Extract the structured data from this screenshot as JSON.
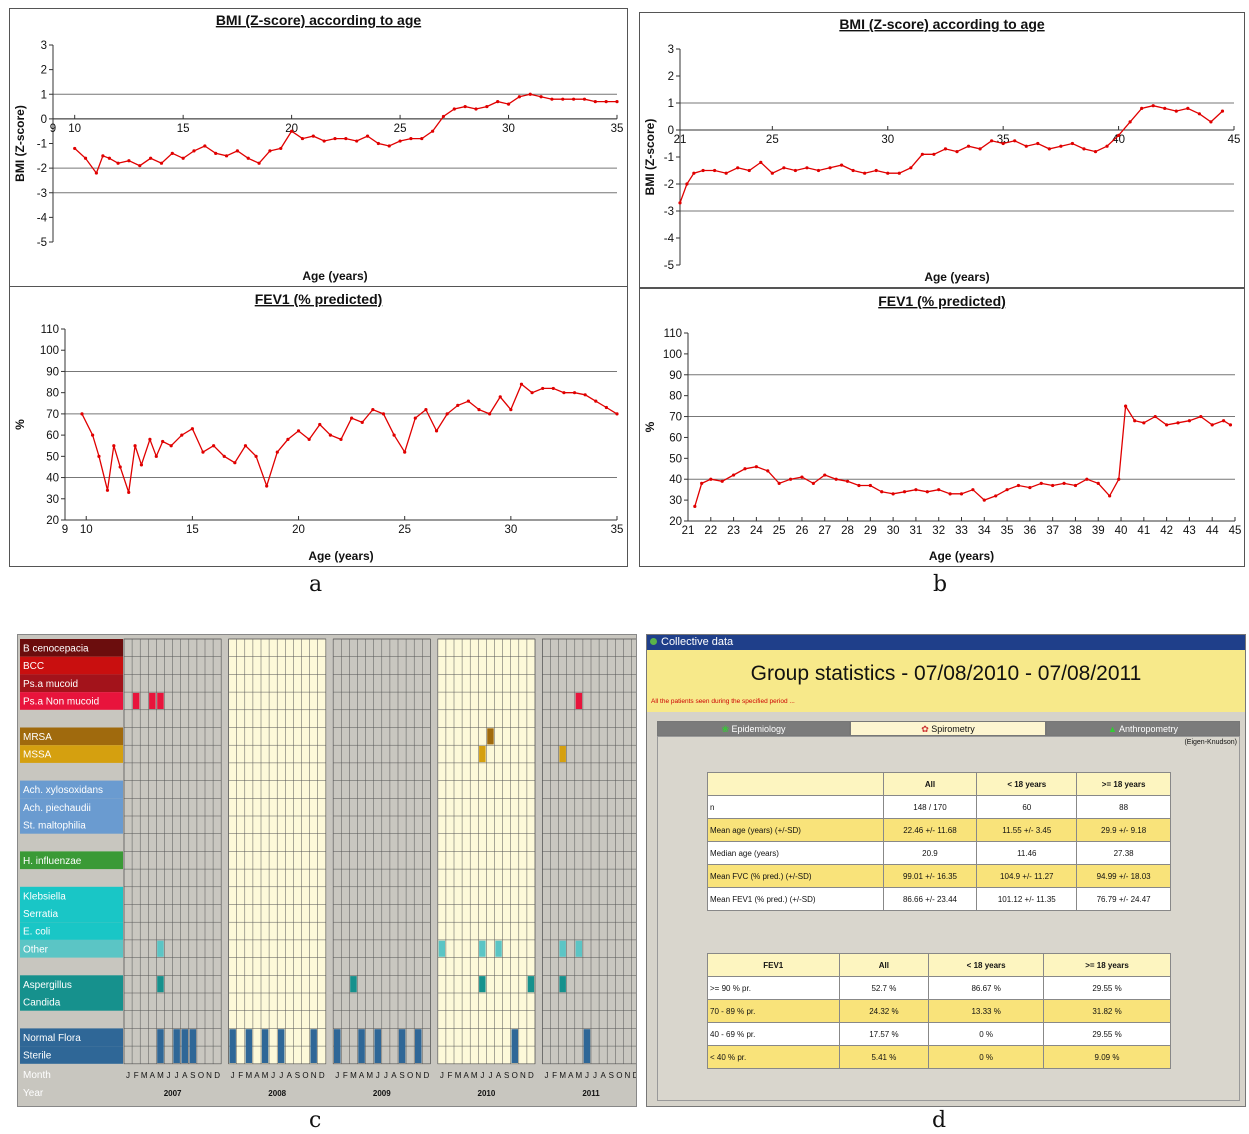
{
  "panel_labels": {
    "a": "a",
    "b": "b",
    "c": "c",
    "d": "d"
  },
  "chart_data": [
    {
      "type": "line",
      "panel": "a",
      "title": "BMI (Z-score) according to age",
      "xlabel": "Age (years)",
      "ylabel": "BMI (Z-score)",
      "xlim": [
        9,
        35
      ],
      "ylim": [
        -5,
        3
      ],
      "xticks": [
        9,
        10,
        15,
        20,
        25,
        30,
        35
      ],
      "yticks": [
        -5,
        -4,
        -3,
        -2,
        -1,
        0,
        1,
        2,
        3
      ],
      "hlines": [
        -3,
        -2,
        0,
        1
      ],
      "series": [
        {
          "color": "#e00000",
          "x": [
            10,
            10.5,
            11,
            11.3,
            11.6,
            12,
            12.5,
            13,
            13.5,
            14,
            14.5,
            15,
            15.5,
            16,
            16.5,
            17,
            17.5,
            18,
            18.5,
            19,
            19.5,
            20,
            20.5,
            21,
            21.5,
            22,
            22.5,
            23,
            23.5,
            24,
            24.5,
            25,
            25.5,
            26,
            26.5,
            27,
            27.5,
            28,
            28.5,
            29,
            29.5,
            30,
            30.5,
            31,
            31.5,
            32,
            32.5,
            33,
            33.5,
            34,
            34.5,
            35
          ],
          "y": [
            -1.2,
            -1.6,
            -2.2,
            -1.5,
            -1.6,
            -1.8,
            -1.7,
            -1.9,
            -1.6,
            -1.8,
            -1.4,
            -1.6,
            -1.3,
            -1.1,
            -1.4,
            -1.5,
            -1.3,
            -1.6,
            -1.8,
            -1.3,
            -1.2,
            -0.5,
            -0.8,
            -0.7,
            -0.9,
            -0.8,
            -0.8,
            -0.9,
            -0.7,
            -1.0,
            -1.1,
            -0.9,
            -0.8,
            -0.8,
            -0.5,
            0.1,
            0.4,
            0.5,
            0.4,
            0.5,
            0.7,
            0.6,
            0.9,
            1.0,
            0.9,
            0.8,
            0.8,
            0.8,
            0.8,
            0.7,
            0.7,
            0.7
          ]
        }
      ]
    },
    {
      "type": "line",
      "panel": "a",
      "title": "FEV1 (% predicted)",
      "xlabel": "Age (years)",
      "ylabel": "%",
      "xlim": [
        9,
        35
      ],
      "ylim": [
        20,
        110
      ],
      "xticks": [
        9,
        10,
        15,
        20,
        25,
        30,
        35
      ],
      "yticks": [
        20,
        30,
        40,
        50,
        60,
        70,
        80,
        90,
        100,
        110
      ],
      "hlines": [
        40,
        70,
        90
      ],
      "series": [
        {
          "color": "#e00000",
          "x": [
            9.8,
            10.3,
            10.6,
            11,
            11.3,
            11.6,
            12,
            12.3,
            12.6,
            13,
            13.3,
            13.6,
            14,
            14.5,
            15,
            15.5,
            16,
            16.5,
            17,
            17.5,
            18,
            18.5,
            19,
            19.5,
            20,
            20.5,
            21,
            21.5,
            22,
            22.5,
            23,
            23.5,
            24,
            24.5,
            25,
            25.5,
            26,
            26.5,
            27,
            27.5,
            28,
            28.5,
            29,
            29.5,
            30,
            30.5,
            31,
            31.5,
            32,
            32.5,
            33,
            33.5,
            34,
            34.5,
            35
          ],
          "y": [
            70,
            60,
            50,
            34,
            55,
            45,
            33,
            55,
            46,
            58,
            50,
            57,
            55,
            60,
            63,
            52,
            55,
            50,
            47,
            55,
            50,
            36,
            52,
            58,
            62,
            58,
            65,
            60,
            58,
            68,
            66,
            72,
            70,
            60,
            52,
            68,
            72,
            62,
            70,
            74,
            76,
            72,
            70,
            78,
            72,
            84,
            80,
            82,
            82,
            80,
            80,
            79,
            76,
            73,
            70
          ]
        }
      ]
    },
    {
      "type": "line",
      "panel": "b",
      "title": "BMI (Z-score) according to age",
      "xlabel": "Age (years)",
      "ylabel": "BMI (Z-score)",
      "xlim": [
        21,
        45
      ],
      "ylim": [
        -5,
        3
      ],
      "xticks": [
        21,
        25,
        30,
        35,
        40,
        45
      ],
      "yticks": [
        -5,
        -4,
        -3,
        -2,
        -1,
        0,
        1,
        2,
        3
      ],
      "hlines": [
        -3,
        -2,
        0,
        1
      ],
      "series": [
        {
          "color": "#e00000",
          "x": [
            21,
            21.3,
            21.6,
            22,
            22.5,
            23,
            23.5,
            24,
            24.5,
            25,
            25.5,
            26,
            26.5,
            27,
            27.5,
            28,
            28.5,
            29,
            29.5,
            30,
            30.5,
            31,
            31.5,
            32,
            32.5,
            33,
            33.5,
            34,
            34.5,
            35,
            35.5,
            36,
            36.5,
            37,
            37.5,
            38,
            38.5,
            39,
            39.5,
            40,
            40.5,
            41,
            41.5,
            42,
            42.5,
            43,
            43.5,
            44,
            44.5
          ],
          "y": [
            -2.7,
            -2.0,
            -1.6,
            -1.5,
            -1.5,
            -1.6,
            -1.4,
            -1.5,
            -1.2,
            -1.6,
            -1.4,
            -1.5,
            -1.4,
            -1.5,
            -1.4,
            -1.3,
            -1.5,
            -1.6,
            -1.5,
            -1.6,
            -1.6,
            -1.4,
            -0.9,
            -0.9,
            -0.7,
            -0.8,
            -0.6,
            -0.7,
            -0.4,
            -0.5,
            -0.4,
            -0.6,
            -0.5,
            -0.7,
            -0.6,
            -0.5,
            -0.7,
            -0.8,
            -0.6,
            -0.2,
            0.3,
            0.8,
            0.9,
            0.8,
            0.7,
            0.8,
            0.6,
            0.3,
            0.7
          ]
        }
      ]
    },
    {
      "type": "line",
      "panel": "b",
      "title": "FEV1 (% predicted)",
      "xlabel": "Age (years)",
      "ylabel": "%",
      "xlim": [
        21,
        45
      ],
      "ylim": [
        20,
        110
      ],
      "xticks": [
        21,
        22,
        23,
        24,
        25,
        26,
        27,
        28,
        29,
        30,
        31,
        32,
        33,
        34,
        35,
        36,
        37,
        38,
        39,
        40,
        41,
        42,
        43,
        44,
        45
      ],
      "yticks": [
        20,
        30,
        40,
        50,
        60,
        70,
        80,
        90,
        100,
        110
      ],
      "hlines": [
        40,
        70,
        90
      ],
      "series": [
        {
          "color": "#e00000",
          "x": [
            21.3,
            21.6,
            22,
            22.5,
            23,
            23.5,
            24,
            24.5,
            25,
            25.5,
            26,
            26.5,
            27,
            27.5,
            28,
            28.5,
            29,
            29.5,
            30,
            30.5,
            31,
            31.5,
            32,
            32.5,
            33,
            33.5,
            34,
            34.5,
            35,
            35.5,
            36,
            36.5,
            37,
            37.5,
            38,
            38.5,
            39,
            39.5,
            39.9,
            40.2,
            40.6,
            41,
            41.5,
            42,
            42.5,
            43,
            43.5,
            44,
            44.5,
            44.8
          ],
          "y": [
            27,
            38,
            40,
            39,
            42,
            45,
            46,
            44,
            38,
            40,
            41,
            38,
            42,
            40,
            39,
            37,
            37,
            34,
            33,
            34,
            35,
            34,
            35,
            33,
            33,
            35,
            30,
            32,
            35,
            37,
            36,
            38,
            37,
            38,
            37,
            40,
            38,
            32,
            40,
            75,
            68,
            67,
            70,
            66,
            67,
            68,
            70,
            66,
            68,
            66
          ]
        }
      ]
    }
  ],
  "microbiology": {
    "organisms": [
      {
        "label": "B cenocepacia",
        "color": "#6b0d0d"
      },
      {
        "label": "BCC",
        "color": "#c90f0f"
      },
      {
        "label": "Ps.a mucoid",
        "color": "#a3131b"
      },
      {
        "label": "Ps.a Non mucoid",
        "color": "#e8143c"
      },
      {
        "label": "",
        "color": ""
      },
      {
        "label": "MRSA",
        "color": "#a06a0d"
      },
      {
        "label": "MSSA",
        "color": "#d5a00f"
      },
      {
        "label": "",
        "color": ""
      },
      {
        "label": "Ach. xylosoxidans",
        "color": "#6a9bd0"
      },
      {
        "label": "Ach. piechaudii",
        "color": "#6a9bd0"
      },
      {
        "label": "St. maltophilia",
        "color": "#6a9bd0"
      },
      {
        "label": "",
        "color": ""
      },
      {
        "label": "H. influenzae",
        "color": "#3a9a36"
      },
      {
        "label": "",
        "color": ""
      },
      {
        "label": "Klebsiella",
        "color": "#19c6c6"
      },
      {
        "label": "Serratia",
        "color": "#19c6c6"
      },
      {
        "label": "E. coli",
        "color": "#19c6c6"
      },
      {
        "label": "Other",
        "color": "#5bc5c5"
      },
      {
        "label": "",
        "color": ""
      },
      {
        "label": "Aspergillus",
        "color": "#16918d"
      },
      {
        "label": "Candida",
        "color": "#16918d"
      },
      {
        "label": "",
        "color": ""
      },
      {
        "label": "Normal Flora",
        "color": "#2f6797"
      },
      {
        "label": "Sterile",
        "color": "#2f6797"
      }
    ],
    "row_month": "Month",
    "row_year": "Year",
    "month_letters": [
      "J",
      "F",
      "M",
      "A",
      "M",
      "J",
      "J",
      "A",
      "S",
      "O",
      "N",
      "D"
    ],
    "years": [
      "2007",
      "2008",
      "2009",
      "2010",
      "2011"
    ],
    "year_backgrounds": [
      "#c9c7c0",
      "#fdf9d9",
      "#c9c7c0",
      "#fdf9d9",
      "#c9c7c0"
    ],
    "detections": [
      {
        "organism": "Ps.a Non mucoid",
        "year": "2007",
        "months": [
          2,
          4,
          5
        ]
      },
      {
        "organism": "Ps.a Non mucoid",
        "year": "2011",
        "months": [
          5
        ]
      },
      {
        "organism": "MRSA",
        "year": "2010",
        "months": [
          7
        ]
      },
      {
        "organism": "MSSA",
        "year": "2010",
        "months": [
          6
        ]
      },
      {
        "organism": "MSSA",
        "year": "2011",
        "months": [
          3
        ]
      },
      {
        "organism": "Other",
        "year": "2007",
        "months": [
          5
        ]
      },
      {
        "organism": "Other",
        "year": "2010",
        "months": [
          1,
          6,
          8
        ]
      },
      {
        "organism": "Other",
        "year": "2011",
        "months": [
          3,
          5
        ]
      },
      {
        "organism": "Aspergillus",
        "year": "2007",
        "months": [
          5
        ]
      },
      {
        "organism": "Aspergillus",
        "year": "2009",
        "months": [
          3
        ]
      },
      {
        "organism": "Aspergillus",
        "year": "2010",
        "months": [
          6,
          12
        ]
      },
      {
        "organism": "Aspergillus",
        "year": "2011",
        "months": [
          3
        ]
      },
      {
        "organism": "Normal Flora",
        "year": "2007",
        "months": [
          5,
          7,
          8,
          9
        ]
      },
      {
        "organism": "Normal Flora",
        "year": "2008",
        "months": [
          1,
          3,
          5,
          7,
          11
        ]
      },
      {
        "organism": "Normal Flora",
        "year": "2009",
        "months": [
          1,
          4,
          6,
          9,
          11
        ]
      },
      {
        "organism": "Normal Flora",
        "year": "2010",
        "months": [
          10
        ]
      },
      {
        "organism": "Normal Flora",
        "year": "2011",
        "months": [
          6
        ]
      }
    ]
  },
  "group_stats": {
    "window_title": "Collective data",
    "heading": "Group statistics - 07/08/2010 - 07/08/2011",
    "subheading": "All the patients seen during the specified period ...",
    "tabs": [
      {
        "label": "Epidemiology",
        "active": false
      },
      {
        "label": "Spirometry",
        "active": true
      },
      {
        "label": "Anthropometry",
        "active": false
      }
    ],
    "reference": "(Eigen-Knudson)",
    "table1": {
      "header": [
        "",
        "All",
        "< 18 years",
        ">= 18 years"
      ],
      "rows": [
        [
          "n",
          "148 / 170",
          "60",
          "88"
        ],
        [
          "Mean age (years) (+/-SD)",
          "22.46 +/- 11.68",
          "11.55 +/- 3.45",
          "29.9 +/- 9.18"
        ],
        [
          "Median age (years)",
          "20.9",
          "11.46",
          "27.38"
        ],
        [
          "Mean FVC (% pred.) (+/-SD)",
          "99.01 +/- 16.35",
          "104.9 +/- 11.27",
          "94.99 +/- 18.03"
        ],
        [
          "Mean FEV1 (% pred.) (+/-SD)",
          "86.66 +/- 23.44",
          "101.12 +/- 11.35",
          "76.79 +/- 24.47"
        ]
      ]
    },
    "table2": {
      "header": [
        "FEV1",
        "All",
        "< 18 years",
        ">= 18 years"
      ],
      "rows": [
        [
          ">= 90 % pr.",
          "52.7 %",
          "86.67 %",
          "29.55 %"
        ],
        [
          "70 - 89 % pr.",
          "24.32 %",
          "13.33 %",
          "31.82 %"
        ],
        [
          "40 - 69 % pr.",
          "17.57 %",
          "0 %",
          "29.55 %"
        ],
        [
          "< 40 % pr.",
          "5.41 %",
          "0 %",
          "9.09 %"
        ]
      ]
    }
  }
}
